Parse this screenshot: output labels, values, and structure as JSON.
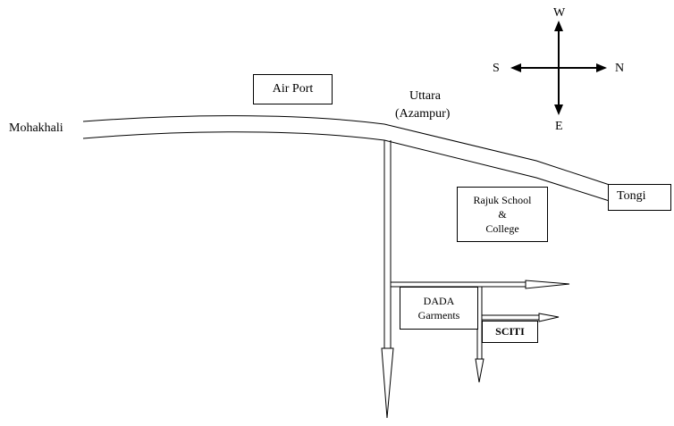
{
  "map": {
    "places": {
      "mohakhali": "Mohakhali",
      "airport": "Air Port",
      "uttara": "Uttara",
      "azampur": "(Azampur)",
      "tongi": "Tongi",
      "rajuk_line1": "Rajuk School",
      "rajuk_line2": "&",
      "rajuk_line3": "College",
      "dada_line1": "DADA",
      "dada_line2": "Garments",
      "sciti": "SCITI"
    },
    "compass": {
      "top": "W",
      "bottom": "E",
      "left": "S",
      "right": "N"
    },
    "colors": {
      "line": "#000000",
      "background": "#ffffff"
    }
  }
}
